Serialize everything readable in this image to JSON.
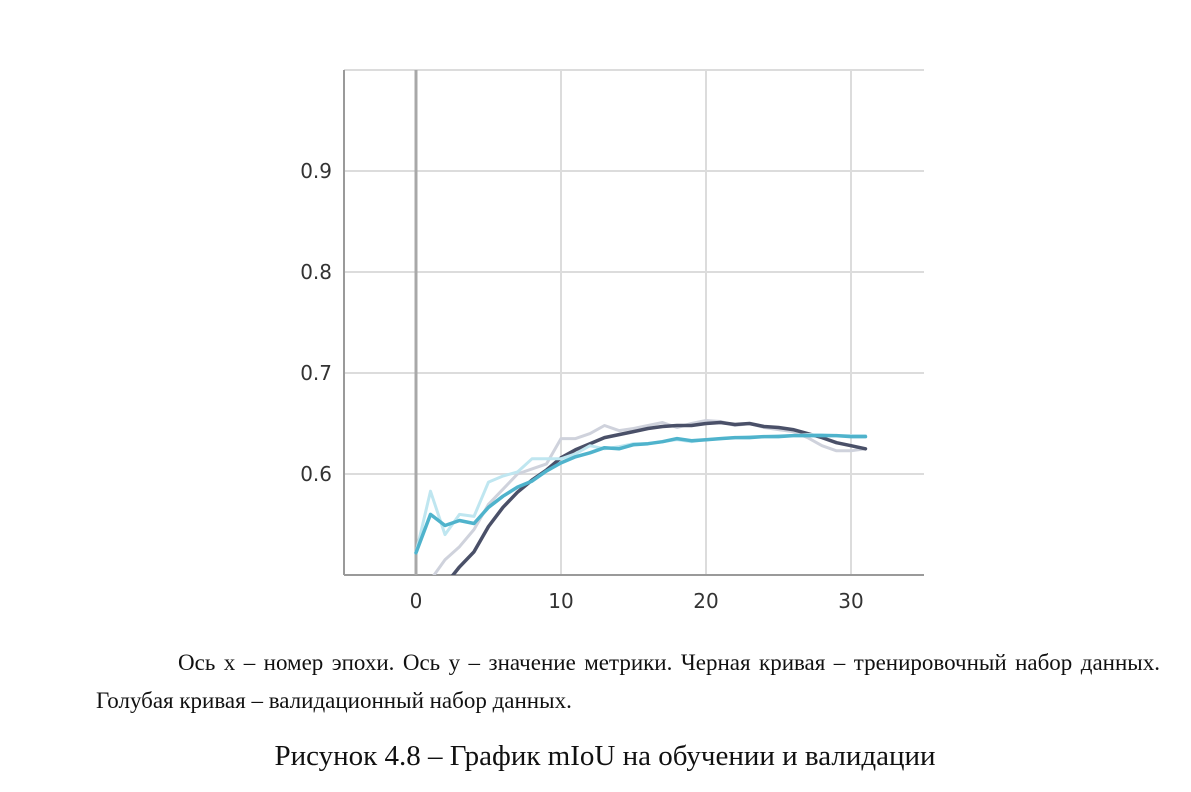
{
  "chart_data": {
    "type": "line",
    "title": "",
    "xlabel": "",
    "ylabel": "",
    "xlim": [
      -5,
      35
    ],
    "ylim": [
      0.49,
      1.0
    ],
    "x_ticks": [
      0,
      10,
      20,
      30
    ],
    "x_tick_labels": [
      "0",
      "10",
      "20",
      "30"
    ],
    "y_ticks": [
      0.6,
      0.7,
      0.8,
      0.9
    ],
    "y_tick_labels": [
      "0.6",
      "0.7",
      "0.8",
      "0.9"
    ],
    "grid": true,
    "colors": {
      "train": "#4a5068",
      "train_raw": "#cfd2dc",
      "val": "#4fb3cc",
      "val_raw": "#bfe6f0",
      "grid": "#dcdcdc",
      "zero_line": "#a8a8a8",
      "axis": "#9a9a9a"
    },
    "series": [
      {
        "key": "train_raw",
        "x": [
          1,
          2,
          3,
          4,
          5,
          6,
          7,
          8,
          9,
          10,
          11,
          12,
          13,
          14,
          15,
          16,
          17,
          18,
          19,
          20,
          21,
          22,
          23,
          24,
          25,
          26,
          27,
          28,
          29,
          30,
          31
        ],
        "values": [
          0.495,
          0.515,
          0.528,
          0.545,
          0.57,
          0.585,
          0.6,
          0.605,
          0.61,
          0.635,
          0.635,
          0.64,
          0.648,
          0.643,
          0.645,
          0.648,
          0.651,
          0.646,
          0.65,
          0.653,
          0.652,
          0.648,
          0.65,
          0.646,
          0.644,
          0.642,
          0.636,
          0.628,
          0.623,
          0.623,
          0.625
        ]
      },
      {
        "key": "train",
        "x": [
          2,
          3,
          4,
          5,
          6,
          7,
          8,
          9,
          10,
          11,
          12,
          13,
          14,
          15,
          16,
          17,
          18,
          19,
          20,
          21,
          22,
          23,
          24,
          25,
          26,
          27,
          28,
          29,
          30,
          31
        ],
        "values": [
          0.49,
          0.508,
          0.523,
          0.548,
          0.567,
          0.582,
          0.594,
          0.604,
          0.616,
          0.624,
          0.63,
          0.636,
          0.639,
          0.642,
          0.645,
          0.647,
          0.648,
          0.648,
          0.65,
          0.651,
          0.649,
          0.65,
          0.647,
          0.646,
          0.644,
          0.64,
          0.636,
          0.631,
          0.628,
          0.625
        ]
      },
      {
        "key": "val_raw",
        "x": [
          0,
          1,
          2,
          3,
          4,
          5,
          6,
          7,
          8,
          9,
          10,
          11,
          12,
          13,
          14,
          15,
          16,
          17,
          18,
          19,
          20,
          21,
          22,
          23,
          24,
          25,
          26,
          27,
          28,
          29,
          30,
          31
        ],
        "values": [
          0.522,
          0.583,
          0.54,
          0.56,
          0.558,
          0.592,
          0.598,
          0.602,
          0.615,
          0.615,
          0.615,
          0.62,
          0.628,
          0.625,
          0.627,
          0.63,
          0.63,
          0.632,
          0.634,
          0.632,
          0.634,
          0.635,
          0.636,
          0.637,
          0.637,
          0.638,
          0.638,
          0.639,
          0.639,
          0.638,
          0.638,
          0.638
        ]
      },
      {
        "key": "val",
        "x": [
          0,
          1,
          2,
          3,
          4,
          5,
          6,
          7,
          8,
          9,
          10,
          11,
          12,
          13,
          14,
          15,
          16,
          17,
          18,
          19,
          20,
          21,
          22,
          23,
          24,
          25,
          26,
          27,
          28,
          29,
          30,
          31
        ],
        "values": [
          0.522,
          0.56,
          0.549,
          0.554,
          0.551,
          0.567,
          0.578,
          0.587,
          0.593,
          0.603,
          0.611,
          0.617,
          0.621,
          0.626,
          0.625,
          0.629,
          0.63,
          0.632,
          0.635,
          0.633,
          0.634,
          0.635,
          0.636,
          0.636,
          0.637,
          0.637,
          0.638,
          0.638,
          0.638,
          0.638,
          0.637,
          0.637
        ]
      }
    ]
  },
  "caption": {
    "note": "Ось x – номер эпохи. Ось y – значение метрики. Черная кривая – тренировочный набор данных. Голубая кривая – валидационный набор данных.",
    "figure_title": "Рисунок 4.8 – График mIoU на обучении и валидации"
  }
}
